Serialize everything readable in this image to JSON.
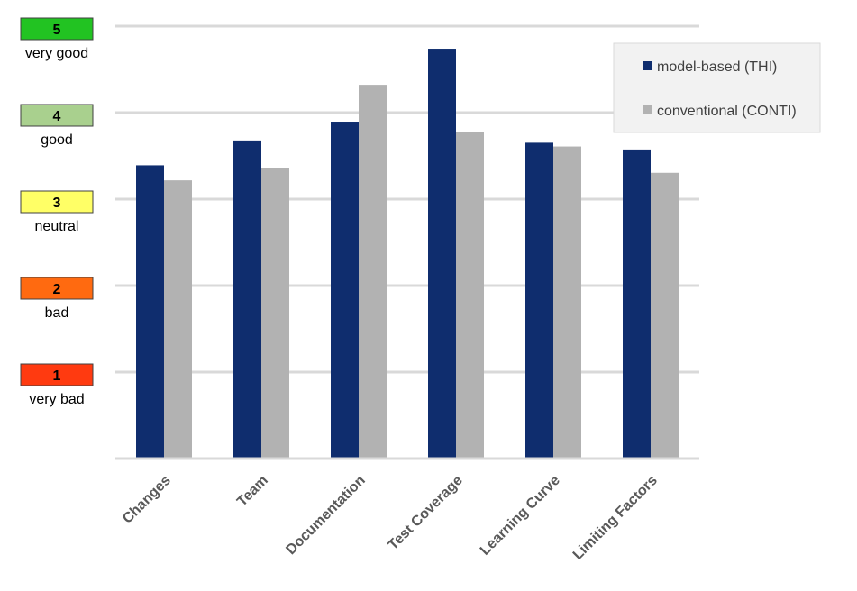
{
  "chart_data": {
    "type": "bar",
    "categories": [
      "Changes",
      "Team",
      "Documentation",
      "Test Coverage",
      "Learning Curve",
      "Limiting Factors"
    ],
    "series": [
      {
        "name": "model-based (THI)",
        "color": "#0f2d6e",
        "values": [
          3.9,
          4.23,
          4.48,
          5.45,
          4.2,
          4.11
        ]
      },
      {
        "name": "conventional (CONTI)",
        "color": "#b2b2b2",
        "values": [
          3.7,
          3.86,
          4.97,
          4.34,
          4.15,
          3.8
        ]
      }
    ],
    "ylim": [
      0,
      5.75
    ],
    "grid": true,
    "legend_position": "top-right",
    "scale_labels": [
      {
        "value": "5",
        "label": "very good",
        "color": "#22c322"
      },
      {
        "value": "4",
        "label": "good",
        "color": "#a9d08e"
      },
      {
        "value": "3",
        "label": "neutral",
        "color": "#ffff66"
      },
      {
        "value": "2",
        "label": "bad",
        "color": "#ff6a10"
      },
      {
        "value": "1",
        "label": "very bad",
        "color": "#ff3a10"
      }
    ]
  }
}
